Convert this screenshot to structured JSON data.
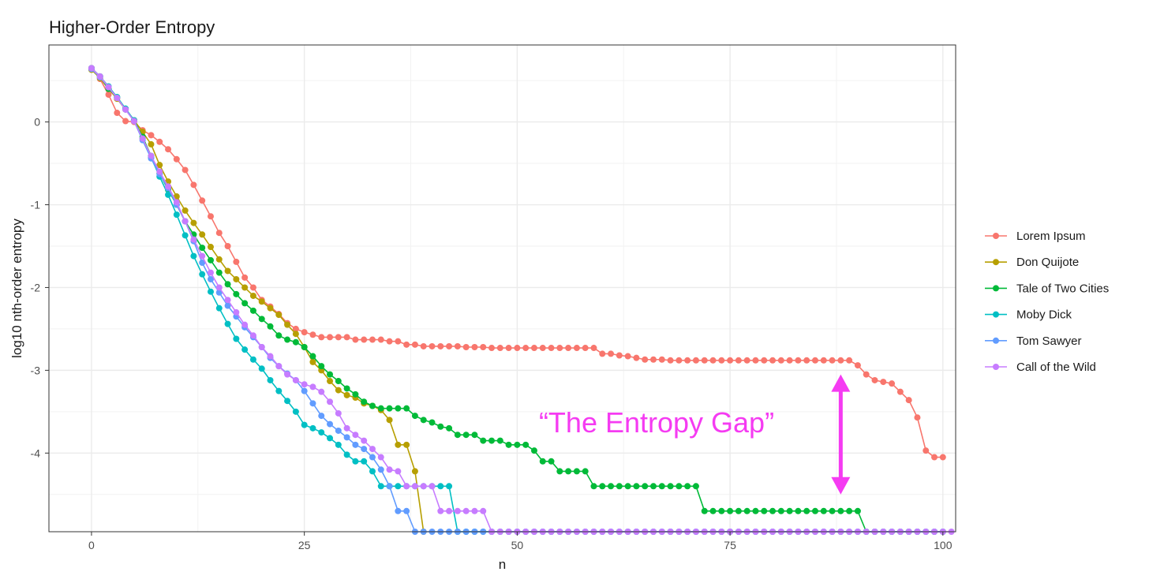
{
  "chart_data": {
    "type": "line",
    "title": "Higher-Order Entropy",
    "xlabel": "n",
    "ylabel": "log10 nth-order entropy",
    "xlim": [
      -5,
      101.5
    ],
    "ylim": [
      -4.95,
      0.93
    ],
    "x_ticks": [
      0,
      25,
      50,
      75,
      100
    ],
    "x_tick_labels": [
      "0",
      "25",
      "50",
      "75",
      "100"
    ],
    "y_ticks": [
      0,
      -1,
      -2,
      -3,
      -4
    ],
    "y_tick_labels": [
      "0",
      "-1",
      "-2",
      "-3",
      "-4"
    ],
    "grid": true,
    "legend_position": "right",
    "series": [
      {
        "name": "Lorem Ipsum",
        "color": "#F8766D",
        "values": [
          0.65,
          0.52,
          0.33,
          0.11,
          0.01,
          0.0,
          -0.1,
          -0.16,
          -0.24,
          -0.33,
          -0.45,
          -0.58,
          -0.76,
          -0.95,
          -1.14,
          -1.34,
          -1.5,
          -1.69,
          -1.88,
          -2.0,
          -2.15,
          -2.23,
          -2.32,
          -2.43,
          -2.5,
          -2.54,
          -2.57,
          -2.6,
          -2.6,
          -2.6,
          -2.6,
          -2.63,
          -2.63,
          -2.63,
          -2.63,
          -2.65,
          -2.65,
          -2.69,
          -2.69,
          -2.71,
          -2.71,
          -2.71,
          -2.71,
          -2.71,
          -2.72,
          -2.72,
          -2.72,
          -2.73,
          -2.73,
          -2.73,
          -2.73,
          -2.73,
          -2.73,
          -2.73,
          -2.73,
          -2.73,
          -2.73,
          -2.73,
          -2.73,
          -2.73,
          -2.8,
          -2.8,
          -2.82,
          -2.83,
          -2.85,
          -2.87,
          -2.87,
          -2.87,
          -2.88,
          -2.88,
          -2.88,
          -2.88,
          -2.88,
          -2.88,
          -2.88,
          -2.88,
          -2.88,
          -2.88,
          -2.88,
          -2.88,
          -2.88,
          -2.88,
          -2.88,
          -2.88,
          -2.88,
          -2.88,
          -2.88,
          -2.88,
          -2.88,
          -2.88,
          -2.94,
          -3.05,
          -3.12,
          -3.14,
          -3.16,
          -3.26,
          -3.36,
          -3.57,
          -3.97,
          -4.05,
          -4.05
        ]
      },
      {
        "name": "Don Quijote",
        "color": "#B79F00",
        "values": [
          0.63,
          0.53,
          0.4,
          0.28,
          0.15,
          0.02,
          -0.12,
          -0.27,
          -0.52,
          -0.72,
          -0.9,
          -1.07,
          -1.22,
          -1.36,
          -1.51,
          -1.66,
          -1.8,
          -1.9,
          -2.0,
          -2.1,
          -2.17,
          -2.25,
          -2.33,
          -2.45,
          -2.56,
          -2.72,
          -2.9,
          -3.0,
          -3.13,
          -3.24,
          -3.3,
          -3.33,
          -3.4,
          -3.43,
          -3.48,
          -3.6,
          -3.9,
          -3.9,
          -4.22,
          -4.95
        ]
      },
      {
        "name": "Tale of Two Cities",
        "color": "#00BA38",
        "values": [
          0.65,
          0.55,
          0.4,
          0.3,
          0.16,
          0.02,
          -0.18,
          -0.41,
          -0.62,
          -0.82,
          -1.0,
          -1.2,
          -1.36,
          -1.52,
          -1.67,
          -1.82,
          -1.96,
          -2.08,
          -2.19,
          -2.28,
          -2.38,
          -2.47,
          -2.58,
          -2.63,
          -2.66,
          -2.72,
          -2.83,
          -2.95,
          -3.05,
          -3.13,
          -3.22,
          -3.29,
          -3.38,
          -3.43,
          -3.46,
          -3.46,
          -3.46,
          -3.46,
          -3.55,
          -3.6,
          -3.63,
          -3.68,
          -3.7,
          -3.78,
          -3.78,
          -3.78,
          -3.85,
          -3.85,
          -3.85,
          -3.9,
          -3.9,
          -3.9,
          -3.97,
          -4.1,
          -4.1,
          -4.22,
          -4.22,
          -4.22,
          -4.22,
          -4.4,
          -4.4,
          -4.4,
          -4.4,
          -4.4,
          -4.4,
          -4.4,
          -4.4,
          -4.4,
          -4.4,
          -4.4,
          -4.4,
          -4.4,
          -4.7,
          -4.7,
          -4.7,
          -4.7,
          -4.7,
          -4.7,
          -4.7,
          -4.7,
          -4.7,
          -4.7,
          -4.7,
          -4.7,
          -4.7,
          -4.7,
          -4.7,
          -4.7,
          -4.7,
          -4.7,
          -4.7,
          -4.95,
          -4.95,
          -4.95,
          -4.95,
          -4.95,
          -4.95,
          -4.95,
          -4.95,
          -4.95,
          -4.95
        ]
      },
      {
        "name": "Moby Dick",
        "color": "#00BFC4",
        "values": [
          0.65,
          0.55,
          0.43,
          0.3,
          0.16,
          0.02,
          -0.2,
          -0.43,
          -0.66,
          -0.88,
          -1.12,
          -1.37,
          -1.62,
          -1.84,
          -2.05,
          -2.25,
          -2.44,
          -2.62,
          -2.75,
          -2.87,
          -2.98,
          -3.12,
          -3.25,
          -3.37,
          -3.5,
          -3.66,
          -3.7,
          -3.75,
          -3.82,
          -3.9,
          -4.02,
          -4.1,
          -4.1,
          -4.22,
          -4.4,
          -4.4,
          -4.4,
          -4.4,
          -4.4,
          -4.4,
          -4.4,
          -4.4,
          -4.4,
          -4.95,
          -4.95,
          -4.95,
          -4.95,
          -4.95,
          -4.95,
          -4.95,
          -4.95,
          -4.95,
          -4.95,
          -4.95,
          -4.95,
          -4.95,
          -4.95,
          -4.95,
          -4.95,
          -4.95,
          -4.95,
          -4.95,
          -4.95,
          -4.95,
          -4.95,
          -4.95,
          -4.95,
          -4.95,
          -4.95,
          -4.95,
          -4.95,
          -4.95,
          -4.95,
          -4.95,
          -4.95,
          -4.95,
          -4.95,
          -4.95,
          -4.95,
          -4.95,
          -4.95,
          -4.95,
          -4.95,
          -4.95,
          -4.95,
          -4.95,
          -4.95,
          -4.95,
          -4.95,
          -4.95,
          -4.95,
          -4.95,
          -4.95,
          -4.95,
          -4.95,
          -4.95,
          -4.95,
          -4.95,
          -4.95,
          -4.95,
          -4.95
        ]
      },
      {
        "name": "Tom Sawyer",
        "color": "#619CFF",
        "values": [
          0.64,
          0.54,
          0.42,
          0.29,
          0.15,
          0.01,
          -0.22,
          -0.44,
          -0.63,
          -0.8,
          -1.0,
          -1.2,
          -1.44,
          -1.7,
          -1.9,
          -2.06,
          -2.22,
          -2.35,
          -2.48,
          -2.6,
          -2.72,
          -2.85,
          -2.95,
          -3.04,
          -3.12,
          -3.25,
          -3.4,
          -3.55,
          -3.65,
          -3.73,
          -3.81,
          -3.9,
          -3.95,
          -4.05,
          -4.2,
          -4.4,
          -4.7,
          -4.7,
          -4.95,
          -4.95,
          -4.95,
          -4.95,
          -4.95,
          -4.95,
          -4.95,
          -4.95,
          -4.95,
          -4.95,
          -4.95,
          -4.95,
          -4.95,
          -4.95,
          -4.95,
          -4.95,
          -4.95,
          -4.95,
          -4.95,
          -4.95,
          -4.95,
          -4.95,
          -4.95,
          -4.95,
          -4.95,
          -4.95,
          -4.95,
          -4.95,
          -4.95,
          -4.95,
          -4.95,
          -4.95,
          -4.95,
          -4.95,
          -4.95,
          -4.95,
          -4.95,
          -4.95,
          -4.95,
          -4.95,
          -4.95,
          -4.95,
          -4.95,
          -4.95,
          -4.95,
          -4.95,
          -4.95,
          -4.95,
          -4.95,
          -4.95,
          -4.95,
          -4.95,
          -4.95,
          -4.95,
          -4.95,
          -4.95,
          -4.95,
          -4.95,
          -4.95,
          -4.95,
          -4.95,
          -4.95,
          -4.95
        ]
      },
      {
        "name": "Call of the Wild",
        "color": "#C77CFF",
        "values": [
          0.65,
          0.55,
          0.42,
          0.29,
          0.15,
          0.01,
          -0.2,
          -0.41,
          -0.6,
          -0.78,
          -0.97,
          -1.2,
          -1.42,
          -1.62,
          -1.82,
          -2.0,
          -2.15,
          -2.3,
          -2.45,
          -2.58,
          -2.72,
          -2.83,
          -2.95,
          -3.05,
          -3.12,
          -3.17,
          -3.2,
          -3.26,
          -3.38,
          -3.52,
          -3.7,
          -3.78,
          -3.85,
          -3.95,
          -4.05,
          -4.2,
          -4.22,
          -4.4,
          -4.4,
          -4.4,
          -4.4,
          -4.7,
          -4.7,
          -4.7,
          -4.7,
          -4.7,
          -4.7,
          -4.95,
          -4.95,
          -4.95,
          -4.95,
          -4.95,
          -4.95,
          -4.95,
          -4.95,
          -4.95,
          -4.95,
          -4.95,
          -4.95,
          -4.95,
          -4.95,
          -4.95,
          -4.95,
          -4.95,
          -4.95,
          -4.95,
          -4.95,
          -4.95,
          -4.95,
          -4.95,
          -4.95,
          -4.95,
          -4.95,
          -4.95,
          -4.95,
          -4.95,
          -4.95,
          -4.95,
          -4.95,
          -4.95,
          -4.95,
          -4.95,
          -4.95,
          -4.95,
          -4.95,
          -4.95,
          -4.95,
          -4.95,
          -4.95,
          -4.95,
          -4.95,
          -4.95,
          -4.95,
          -4.95,
          -4.95,
          -4.95,
          -4.95,
          -4.95,
          -4.95,
          -4.95,
          -4.95,
          -4.95
        ]
      }
    ],
    "annotation": {
      "text": "“The Entropy Gap”",
      "color": "#F53BF2",
      "arrow_x": 88,
      "arrow_from": -3.05,
      "arrow_to": -4.5
    }
  }
}
